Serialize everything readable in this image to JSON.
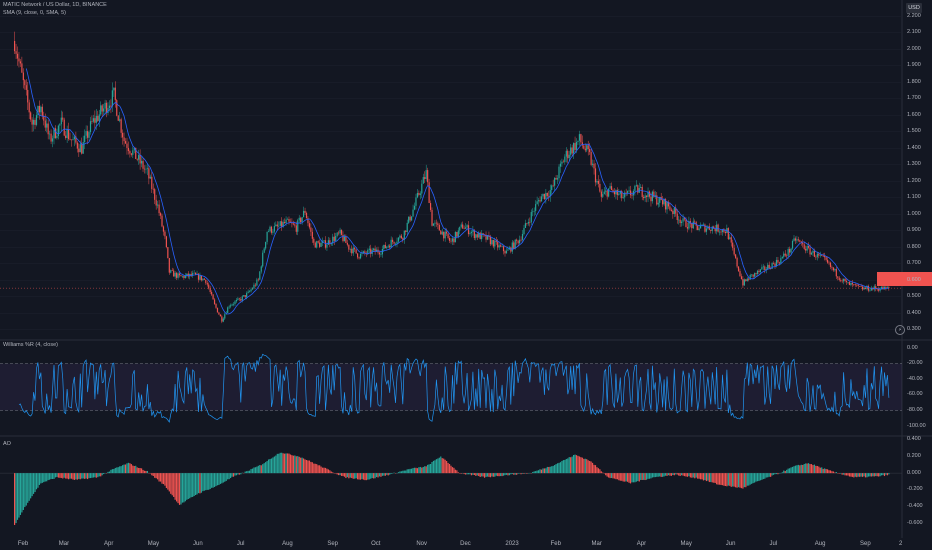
{
  "header": {
    "title": "MATIC Network / US Dollar, 1D, BINANCE",
    "sma_legend": "SMA (9, close, 0, SMA, 5)",
    "currency": "USD"
  },
  "price_tag": {
    "value": "",
    "color": "#f05350"
  },
  "x_labels": [
    "Feb",
    "Mar",
    "Apr",
    "May",
    "Jun",
    "Jul",
    "Aug",
    "Sep",
    "Oct",
    "Nov",
    "Dec",
    "2023",
    "Feb",
    "Mar",
    "Apr",
    "May",
    "Jun",
    "Jul",
    "Aug",
    "Sep",
    "2"
  ],
  "colors": {
    "up": "#26a69a",
    "down": "#ef5350",
    "sma": "#2962ff",
    "willr": "#2196f3",
    "background": "#131722"
  },
  "chart_data": [
    {
      "type": "line",
      "title": "MATIC Network / US Dollar, 1D, BINANCE",
      "description_series": "approximate closing prices (candlestick chart)",
      "x": [
        "2022-01-27",
        "2022-02-03",
        "2022-02-08",
        "2022-02-14",
        "2022-02-20",
        "2022-02-28",
        "2022-03-07",
        "2022-03-14",
        "2022-03-21",
        "2022-03-30",
        "2022-04-05",
        "2022-04-12",
        "2022-04-20",
        "2022-04-28",
        "2022-05-05",
        "2022-05-10",
        "2022-05-13",
        "2022-05-20",
        "2022-05-30",
        "2022-06-07",
        "2022-06-13",
        "2022-06-18",
        "2022-06-23",
        "2022-06-30",
        "2022-07-06",
        "2022-07-13",
        "2022-07-19",
        "2022-07-26",
        "2022-08-01",
        "2022-08-08",
        "2022-08-14",
        "2022-08-20",
        "2022-08-28",
        "2022-09-07",
        "2022-09-13",
        "2022-09-20",
        "2022-09-27",
        "2022-10-05",
        "2022-10-12",
        "2022-10-20",
        "2022-10-28",
        "2022-11-05",
        "2022-11-09",
        "2022-11-15",
        "2022-11-22",
        "2022-11-30",
        "2022-12-08",
        "2022-12-17",
        "2022-12-30",
        "2023-01-08",
        "2023-01-15",
        "2023-01-22",
        "2023-01-30",
        "2023-02-08",
        "2023-02-18",
        "2023-02-25",
        "2023-03-05",
        "2023-03-10",
        "2023-03-20",
        "2023-03-30",
        "2023-04-10",
        "2023-04-20",
        "2023-04-30",
        "2023-05-10",
        "2023-05-20",
        "2023-05-30",
        "2023-06-05",
        "2023-06-10",
        "2023-06-15",
        "2023-06-25",
        "2023-07-05",
        "2023-07-12",
        "2023-07-16",
        "2023-07-25",
        "2023-08-05",
        "2023-08-15",
        "2023-08-20",
        "2023-08-30",
        "2023-09-05",
        "2023-09-10",
        "2023-09-18"
      ],
      "y": [
        2.05,
        1.75,
        1.55,
        1.65,
        1.45,
        1.55,
        1.45,
        1.4,
        1.55,
        1.65,
        1.72,
        1.45,
        1.35,
        1.25,
        1.05,
        0.85,
        0.65,
        0.62,
        0.63,
        0.6,
        0.45,
        0.36,
        0.45,
        0.48,
        0.52,
        0.6,
        0.9,
        0.92,
        0.95,
        0.92,
        1.02,
        0.82,
        0.82,
        0.88,
        0.8,
        0.75,
        0.77,
        0.78,
        0.83,
        0.87,
        1.05,
        1.25,
        0.95,
        0.9,
        0.83,
        0.93,
        0.88,
        0.85,
        0.77,
        0.85,
        0.98,
        1.1,
        1.15,
        1.35,
        1.45,
        1.35,
        1.1,
        1.15,
        1.1,
        1.15,
        1.1,
        1.05,
        0.95,
        0.92,
        0.92,
        0.9,
        0.72,
        0.58,
        0.62,
        0.67,
        0.72,
        0.78,
        0.85,
        0.78,
        0.72,
        0.62,
        0.58,
        0.55,
        0.55,
        0.55,
        0.55
      ],
      "xlabel": "",
      "ylabel": "",
      "yticks": [
        "2.200",
        "2.100",
        "2.000",
        "1.900",
        "1.800",
        "1.700",
        "1.600",
        "1.500",
        "1.400",
        "1.300",
        "1.200",
        "1.100",
        "1.000",
        "0.900",
        "0.800",
        "0.700",
        "0.600",
        "0.500",
        "0.400",
        "0.300"
      ],
      "ylim": [
        0.25,
        2.25
      ],
      "series": [
        {
          "name": "SMA (9, close, 0, SMA, 5)",
          "values_note": "9-day simple moving average of close"
        }
      ]
    },
    {
      "type": "line",
      "title": "Williams %R (4, close)",
      "yticks": [
        "0.00",
        "-20.00",
        "-40.00",
        "-60.00",
        "-80.00",
        "-100.00"
      ],
      "ylim": [
        -100,
        0
      ],
      "bands": [
        -20,
        -80
      ],
      "note": "oscillator oscillating between 0 and -100 across the whole period"
    },
    {
      "type": "bar",
      "title": "AO",
      "yticks": [
        "0.400",
        "0.200",
        "0.000",
        "-0.200",
        "-0.400",
        "-0.600"
      ],
      "ylim": [
        -0.68,
        0.42
      ],
      "x": [
        "2022-01-27",
        "2022-02-05",
        "2022-02-14",
        "2022-02-25",
        "2022-03-10",
        "2022-03-25",
        "2022-04-05",
        "2022-04-15",
        "2022-04-28",
        "2022-05-10",
        "2022-05-20",
        "2022-06-01",
        "2022-06-15",
        "2022-06-25",
        "2022-07-05",
        "2022-07-15",
        "2022-07-28",
        "2022-08-10",
        "2022-08-25",
        "2022-09-10",
        "2022-09-25",
        "2022-10-10",
        "2022-10-25",
        "2022-11-05",
        "2022-11-15",
        "2022-11-28",
        "2022-12-15",
        "2023-01-01",
        "2023-01-15",
        "2023-02-01",
        "2023-02-15",
        "2023-02-25",
        "2023-03-10",
        "2023-03-25",
        "2023-04-10",
        "2023-04-25",
        "2023-05-10",
        "2023-05-25",
        "2023-06-10",
        "2023-06-20",
        "2023-07-05",
        "2023-07-15",
        "2023-07-25",
        "2023-08-10",
        "2023-08-25",
        "2023-09-10",
        "2023-09-18"
      ],
      "values": [
        -0.62,
        -0.35,
        -0.12,
        -0.05,
        -0.08,
        -0.05,
        0.05,
        0.12,
        0.02,
        -0.15,
        -0.38,
        -0.25,
        -0.15,
        -0.05,
        0.02,
        0.1,
        0.25,
        0.2,
        0.08,
        -0.05,
        -0.08,
        -0.02,
        0.05,
        0.08,
        0.2,
        0.0,
        -0.05,
        -0.02,
        0.0,
        0.1,
        0.22,
        0.15,
        -0.05,
        -0.12,
        -0.05,
        -0.02,
        -0.06,
        -0.14,
        -0.18,
        -0.1,
        0.0,
        0.08,
        0.12,
        0.02,
        -0.05,
        -0.04,
        -0.02
      ]
    }
  ]
}
